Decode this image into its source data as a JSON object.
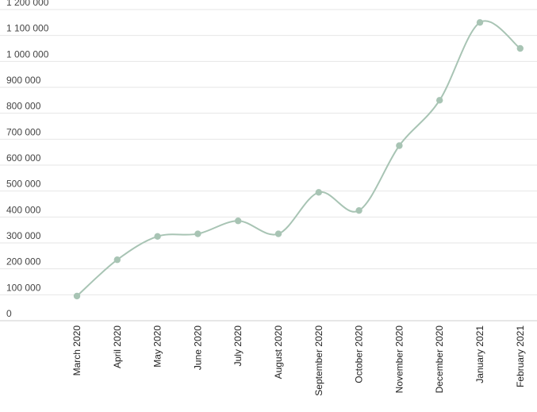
{
  "chart_data": {
    "type": "line",
    "title": "",
    "xlabel": "",
    "ylabel": "",
    "categories": [
      "March 2020",
      "April 2020",
      "May 2020",
      "June 2020",
      "July 2020",
      "August 2020",
      "September 2020",
      "October 2020",
      "November 2020",
      "December 2020",
      "January 2021",
      "February 2021"
    ],
    "series": [
      {
        "values": [
          95000,
          235000,
          325000,
          335000,
          385000,
          335000,
          495000,
          425000,
          675000,
          850000,
          1150000,
          1050000
        ]
      }
    ],
    "ylim": [
      0,
      1200000
    ],
    "yticks": [
      0,
      100000,
      200000,
      300000,
      400000,
      500000,
      600000,
      700000,
      800000,
      900000,
      1000000,
      1100000,
      1200000
    ],
    "ytick_labels": [
      "0",
      "100 000",
      "200 000",
      "300 000",
      "400 000",
      "500 000",
      "600 000",
      "700 000",
      "800 000",
      "900 000",
      "1 000 000",
      "1 100 000",
      "1 200 000"
    ],
    "grid": true,
    "smooth": true,
    "color": "#a8c4b4"
  }
}
